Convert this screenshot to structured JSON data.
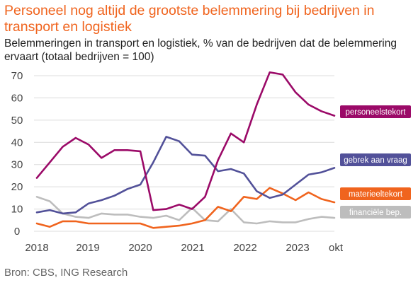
{
  "header": {
    "title": "Personeel nog altijd de grootste  belemmering bij bedrijven in transport  en logistiek",
    "subtitle": "Belemmeringen in transport en logistiek, % van de bedrijven dat de belemmering ervaart (totaal bedrijven = 100)"
  },
  "source": "Bron: CBS, ING Research",
  "chart_data": {
    "type": "line",
    "title": "",
    "xlabel": "",
    "ylabel": "",
    "ylim": [
      0,
      70
    ],
    "yticks": [
      0,
      10,
      20,
      30,
      40,
      50,
      60,
      70
    ],
    "xticks": [
      "2018",
      "2019",
      "2020",
      "2021",
      "2022",
      "2023",
      "okt"
    ],
    "grid": true,
    "legend": "line-end labels",
    "x": [
      "2018 Q1",
      "2018 Q2",
      "2018 Q3",
      "2018 Q4",
      "2019 Q1",
      "2019 Q2",
      "2019 Q3",
      "2019 Q4",
      "2020 Q1",
      "2020 Q2",
      "2020 Q3",
      "2020 Q4",
      "2021 Q1",
      "2021 Q2",
      "2021 Q3",
      "2021 Q4",
      "2022 Q1",
      "2022 Q2",
      "2022 Q3",
      "2022 Q4",
      "2023 Q1",
      "2023 Q2",
      "2023 Q3",
      "2023 Q4"
    ],
    "series": [
      {
        "name": "personeelstekort",
        "color": "#9b0a68",
        "values": [
          24,
          31,
          38,
          42,
          39,
          33,
          36.5,
          36.5,
          36,
          9.5,
          10,
          12,
          10,
          15.5,
          32,
          44,
          40,
          57,
          71.5,
          70.5,
          62.5,
          57,
          54,
          52
        ]
      },
      {
        "name": "gebrek aan vraag",
        "color": "#525199",
        "values": [
          8.5,
          9.5,
          8,
          8.5,
          12.5,
          14,
          16,
          19,
          21,
          31,
          42.5,
          40.5,
          34.5,
          34,
          27,
          28,
          26,
          18,
          15,
          16.5,
          21,
          25.5,
          26.5,
          28.5
        ]
      },
      {
        "name": "materieeltekort",
        "color": "#f0641e",
        "values": [
          3.5,
          2,
          4.5,
          4.5,
          3.5,
          3.5,
          3.5,
          3.5,
          3.5,
          1.5,
          2,
          2.5,
          3.5,
          5,
          11,
          9,
          15.5,
          14.5,
          19.5,
          17,
          14,
          17.5,
          14.5,
          13
        ]
      },
      {
        "name": "financiële bep.",
        "color": "#bdbdbd",
        "values": [
          15.5,
          13.5,
          8,
          6.5,
          6,
          8,
          7.5,
          7.5,
          6.5,
          6,
          7,
          5,
          10.5,
          5,
          4.5,
          10,
          4,
          3.5,
          4.5,
          4,
          4,
          5.5,
          6.5,
          6
        ]
      }
    ]
  }
}
